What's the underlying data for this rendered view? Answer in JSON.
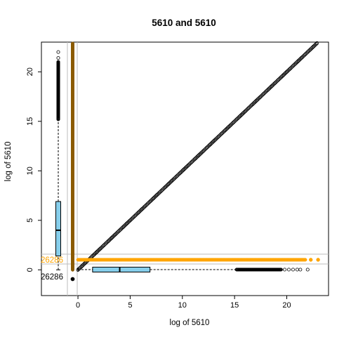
{
  "chart_data": {
    "type": "scatter",
    "title": "5610  and 5610",
    "xlabel": "log of 5610",
    "ylabel": "log of 5610",
    "xlim": [
      -3.5,
      24
    ],
    "ylim": [
      -2.6,
      23
    ],
    "x_ticks": [
      0,
      5,
      10,
      15,
      20
    ],
    "y_ticks": [
      0,
      5,
      10,
      15,
      20
    ],
    "series": [
      {
        "values_from": "identity",
        "x_start": 0.0,
        "x_end": 22.9,
        "marker": "open-circle",
        "color": "#000000"
      }
    ],
    "zero_count_label": "26286",
    "zero_x_count_label": "26286",
    "colors": {
      "points": "#000000",
      "zero_y_points": "#FFA500",
      "zero_x_points": "#8B5A00",
      "box_fill": "#87CEEB",
      "guide_lines": "#BEBEBE",
      "zero_count_text": "#FFA500"
    },
    "marginal_boxplot_y": {
      "min": 0.0,
      "q1": 1.4,
      "median": 4.0,
      "q3": 6.9,
      "whisker_high": 15.2,
      "outlier_min": 15.2,
      "outlier_max": 22.0
    },
    "marginal_boxplot_x": {
      "min": 0.0,
      "q1": 1.4,
      "median": 4.0,
      "q3": 6.9,
      "whisker_high": 15.2,
      "outlier_min": 15.2,
      "outlier_max": 22.0
    },
    "zero_x_strip": {
      "y_min": 0.0,
      "y_max": 22.9
    },
    "zero_y_strip": {
      "x_min": 0.0,
      "x_max": 23.0
    }
  }
}
